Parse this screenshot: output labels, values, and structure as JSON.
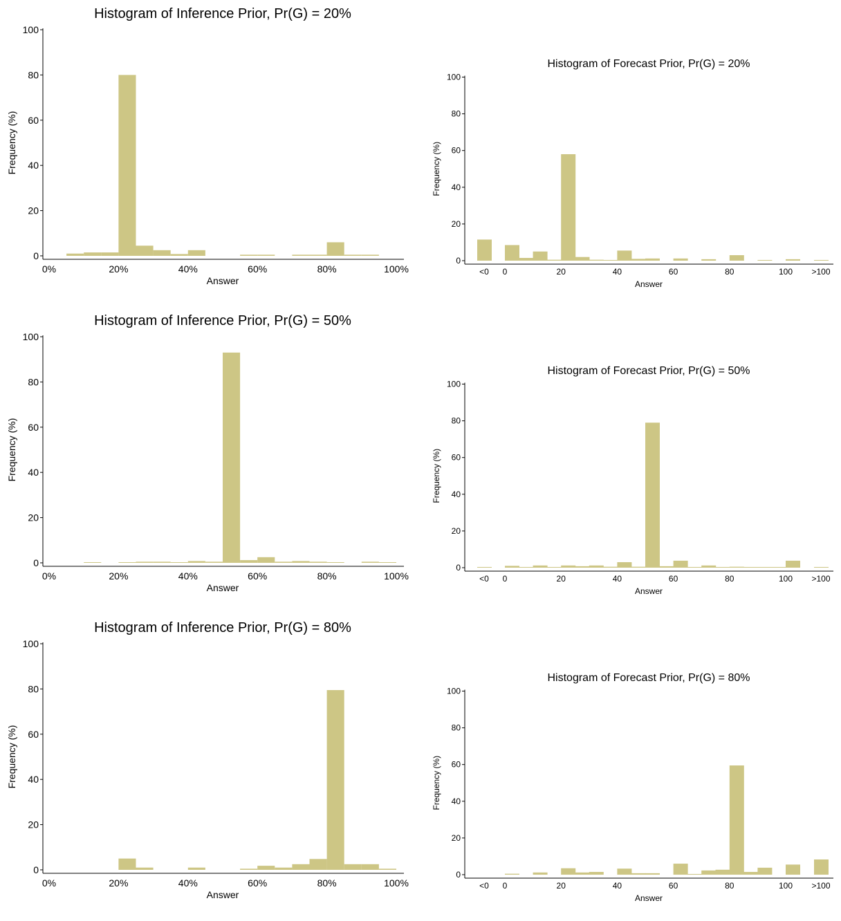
{
  "colors": {
    "bar": "#cdc685",
    "axis": "#000000",
    "background": "#ffffff"
  },
  "chart_data": [
    {
      "type": "bar",
      "title": "Histogram of Inference Prior, Pr(G) = 20%",
      "xlabel": "Answer",
      "ylabel": "Frequency (%)",
      "ylim": [
        0,
        100
      ],
      "yticks": [
        "0",
        "20",
        "40",
        "60",
        "80",
        "100"
      ],
      "xticks": [
        "0%",
        "20%",
        "40%",
        "60%",
        "80%",
        "100%"
      ],
      "bin_width": 5,
      "bins": [
        {
          "x": 5,
          "y": 1
        },
        {
          "x": 10,
          "y": 1.5
        },
        {
          "x": 15,
          "y": 1.5
        },
        {
          "x": 20,
          "y": 80
        },
        {
          "x": 25,
          "y": 4.5
        },
        {
          "x": 30,
          "y": 2.5
        },
        {
          "x": 35,
          "y": 0.8
        },
        {
          "x": 40,
          "y": 2.5
        },
        {
          "x": 55,
          "y": 0.5
        },
        {
          "x": 60,
          "y": 0.5
        },
        {
          "x": 70,
          "y": 0.5
        },
        {
          "x": 75,
          "y": 0.5
        },
        {
          "x": 80,
          "y": 6
        },
        {
          "x": 85,
          "y": 0.5
        },
        {
          "x": 90,
          "y": 0.5
        }
      ]
    },
    {
      "type": "bar",
      "title": "Histogram of Forecast Prior, Pr(G) = 20%",
      "xlabel": "Answer",
      "ylabel": "Frequency (%)",
      "ylim": [
        0,
        100
      ],
      "yticks": [
        "0",
        "20",
        "40",
        "60",
        "80",
        "100"
      ],
      "xticks": [
        "<0",
        "0",
        "20",
        "40",
        "60",
        "80",
        "100",
        ">100"
      ],
      "bins": [
        {
          "x": "<0",
          "y": 11.5
        },
        {
          "x": "0",
          "y": 8.5
        },
        {
          "x": "5",
          "y": 1.5
        },
        {
          "x": "10",
          "y": 5
        },
        {
          "x": "15",
          "y": 0.5
        },
        {
          "x": "20",
          "y": 58
        },
        {
          "x": "25",
          "y": 2
        },
        {
          "x": "30",
          "y": 0.5
        },
        {
          "x": "35",
          "y": 0.3
        },
        {
          "x": "40",
          "y": 5.5
        },
        {
          "x": "45",
          "y": 1
        },
        {
          "x": "50",
          "y": 1.2
        },
        {
          "x": "60",
          "y": 1.2
        },
        {
          "x": "70",
          "y": 0.8
        },
        {
          "x": "80",
          "y": 3
        },
        {
          "x": "90",
          "y": 0.3
        },
        {
          "x": "100",
          "y": 0.8
        },
        {
          "x": ">100",
          "y": 0.3
        }
      ]
    },
    {
      "type": "bar",
      "title": "Histogram of Inference Prior, Pr(G) = 50%",
      "xlabel": "Answer",
      "ylabel": "Frequency (%)",
      "ylim": [
        0,
        100
      ],
      "yticks": [
        "0",
        "20",
        "40",
        "60",
        "80",
        "100"
      ],
      "xticks": [
        "0%",
        "20%",
        "40%",
        "60%",
        "80%",
        "100%"
      ],
      "bin_width": 5,
      "bins": [
        {
          "x": 10,
          "y": 0.3
        },
        {
          "x": 20,
          "y": 0.3
        },
        {
          "x": 25,
          "y": 0.5
        },
        {
          "x": 30,
          "y": 0.5
        },
        {
          "x": 35,
          "y": 0.3
        },
        {
          "x": 40,
          "y": 0.8
        },
        {
          "x": 45,
          "y": 0.5
        },
        {
          "x": 50,
          "y": 93
        },
        {
          "x": 55,
          "y": 1.2
        },
        {
          "x": 60,
          "y": 2.5
        },
        {
          "x": 65,
          "y": 0.5
        },
        {
          "x": 70,
          "y": 0.8
        },
        {
          "x": 75,
          "y": 0.5
        },
        {
          "x": 80,
          "y": 0.3
        },
        {
          "x": 90,
          "y": 0.5
        },
        {
          "x": 95,
          "y": 0.3
        }
      ]
    },
    {
      "type": "bar",
      "title": "Histogram of Forecast Prior, Pr(G) = 50%",
      "xlabel": "Answer",
      "ylabel": "Frequency (%)",
      "ylim": [
        0,
        100
      ],
      "yticks": [
        "0",
        "20",
        "40",
        "60",
        "80",
        "100"
      ],
      "xticks": [
        "<0",
        "0",
        "20",
        "40",
        "60",
        "80",
        "100",
        ">100"
      ],
      "bins": [
        {
          "x": "<0",
          "y": 0.3
        },
        {
          "x": "0",
          "y": 1
        },
        {
          "x": "5",
          "y": 0.3
        },
        {
          "x": "10",
          "y": 1.2
        },
        {
          "x": "15",
          "y": 0.3
        },
        {
          "x": "20",
          "y": 1.2
        },
        {
          "x": "25",
          "y": 0.8
        },
        {
          "x": "30",
          "y": 1.2
        },
        {
          "x": "35",
          "y": 0.5
        },
        {
          "x": "40",
          "y": 3
        },
        {
          "x": "45",
          "y": 0.5
        },
        {
          "x": "50",
          "y": 79
        },
        {
          "x": "55",
          "y": 0.8
        },
        {
          "x": "60",
          "y": 3.8
        },
        {
          "x": "65",
          "y": 0.3
        },
        {
          "x": "70",
          "y": 1.2
        },
        {
          "x": "75",
          "y": 0.3
        },
        {
          "x": "80",
          "y": 0.5
        },
        {
          "x": "85",
          "y": 0.3
        },
        {
          "x": "90",
          "y": 0.3
        },
        {
          "x": "95",
          "y": 0.3
        },
        {
          "x": "100",
          "y": 3.8
        },
        {
          "x": ">100",
          "y": 0.3
        }
      ]
    },
    {
      "type": "bar",
      "title": "Histogram of Inference Prior, Pr(G) = 80%",
      "xlabel": "Answer",
      "ylabel": "Frequency (%)",
      "ylim": [
        0,
        100
      ],
      "yticks": [
        "0",
        "20",
        "40",
        "60",
        "80",
        "100"
      ],
      "xticks": [
        "0%",
        "20%",
        "40%",
        "60%",
        "80%",
        "100%"
      ],
      "bin_width": 5,
      "bins": [
        {
          "x": 20,
          "y": 5
        },
        {
          "x": 25,
          "y": 1
        },
        {
          "x": 40,
          "y": 1
        },
        {
          "x": 55,
          "y": 0.5
        },
        {
          "x": 60,
          "y": 1.8
        },
        {
          "x": 65,
          "y": 1
        },
        {
          "x": 70,
          "y": 2.5
        },
        {
          "x": 75,
          "y": 4.8
        },
        {
          "x": 80,
          "y": 79.5
        },
        {
          "x": 85,
          "y": 2.5
        },
        {
          "x": 90,
          "y": 2.5
        },
        {
          "x": 95,
          "y": 0.5
        }
      ]
    },
    {
      "type": "bar",
      "title": "Histogram of Forecast Prior, Pr(G) = 80%",
      "xlabel": "Answer",
      "ylabel": "Frequency (%)",
      "ylim": [
        0,
        100
      ],
      "yticks": [
        "0",
        "20",
        "40",
        "60",
        "80",
        "100"
      ],
      "xticks": [
        "<0",
        "0",
        "20",
        "40",
        "60",
        "80",
        "100",
        ">100"
      ],
      "bins": [
        {
          "x": "0",
          "y": 0.5
        },
        {
          "x": "10",
          "y": 1.2
        },
        {
          "x": "20",
          "y": 3.5
        },
        {
          "x": "25",
          "y": 1.2
        },
        {
          "x": "30",
          "y": 1.5
        },
        {
          "x": "40",
          "y": 3.3
        },
        {
          "x": "45",
          "y": 0.8
        },
        {
          "x": "50",
          "y": 0.8
        },
        {
          "x": "60",
          "y": 6
        },
        {
          "x": "65",
          "y": 0.3
        },
        {
          "x": "70",
          "y": 2.3
        },
        {
          "x": "75",
          "y": 2.7
        },
        {
          "x": "80",
          "y": 59.5
        },
        {
          "x": "85",
          "y": 1.5
        },
        {
          "x": "90",
          "y": 3.8
        },
        {
          "x": "100",
          "y": 5.5
        },
        {
          "x": ">100",
          "y": 8.3
        }
      ]
    }
  ]
}
